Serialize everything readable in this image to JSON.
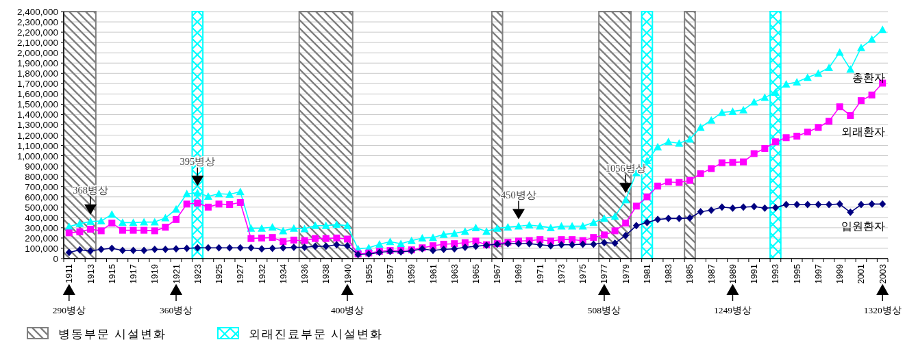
{
  "chart_data": {
    "type": "line",
    "categories": [
      "1911",
      null,
      "1913",
      null,
      "1915",
      null,
      "1917",
      null,
      "1919",
      null,
      "1921",
      null,
      "1923",
      null,
      "1925",
      null,
      "1927",
      null,
      "1932",
      null,
      "1934",
      null,
      "1936",
      null,
      "1938",
      null,
      "1940",
      null,
      "1955",
      null,
      "1957",
      null,
      "1959",
      null,
      "1961",
      null,
      "1963",
      null,
      "1965",
      null,
      "1967",
      null,
      "1969",
      null,
      "1971",
      null,
      "1973",
      null,
      "1975",
      null,
      "1977",
      null,
      "1979",
      null,
      "1981",
      null,
      "1983",
      null,
      "1985",
      null,
      "1987",
      null,
      "1989",
      null,
      "1991",
      null,
      "1993",
      null,
      "1995",
      null,
      "1997",
      null,
      "1999",
      null,
      "2001",
      null,
      "2003"
    ],
    "series": [
      {
        "name": "총환자",
        "color": "#00ffff",
        "marker": "triangle",
        "values": [
          310000,
          340000,
          360000,
          365000,
          430000,
          350000,
          350000,
          355000,
          355000,
          395000,
          480000,
          630000,
          640000,
          605000,
          630000,
          625000,
          650000,
          295000,
          295000,
          305000,
          270000,
          295000,
          290000,
          320000,
          320000,
          330000,
          320000,
          95000,
          105000,
          140000,
          165000,
          145000,
          175000,
          200000,
          205000,
          235000,
          245000,
          265000,
          300000,
          265000,
          295000,
          305000,
          315000,
          325000,
          315000,
          300000,
          315000,
          315000,
          315000,
          350000,
          390000,
          410000,
          570000,
          835000,
          950000,
          1085000,
          1135000,
          1120000,
          1160000,
          1275000,
          1345000,
          1420000,
          1430000,
          1445000,
          1520000,
          1565000,
          1615000,
          1695000,
          1715000,
          1760000,
          1800000,
          1855000,
          2005000,
          1840000,
          2050000,
          2130000,
          2225000
        ]
      },
      {
        "name": "외래환자",
        "color": "#ff00ff",
        "marker": "square",
        "values": [
          250000,
          260000,
          285000,
          270000,
          345000,
          275000,
          275000,
          275000,
          270000,
          305000,
          380000,
          530000,
          540000,
          500000,
          530000,
          525000,
          545000,
          195000,
          200000,
          205000,
          165000,
          180000,
          175000,
          195000,
          195000,
          200000,
          190000,
          45000,
          55000,
          70000,
          80000,
          80000,
          85000,
          105000,
          125000,
          140000,
          145000,
          155000,
          170000,
          135000,
          145000,
          160000,
          170000,
          175000,
          185000,
          170000,
          185000,
          185000,
          175000,
          205000,
          230000,
          270000,
          345000,
          510000,
          600000,
          705000,
          745000,
          740000,
          760000,
          825000,
          875000,
          930000,
          935000,
          940000,
          1020000,
          1070000,
          1135000,
          1175000,
          1190000,
          1230000,
          1275000,
          1335000,
          1475000,
          1390000,
          1535000,
          1590000,
          1705000
        ]
      },
      {
        "name": "입원환자",
        "color": "#000080",
        "marker": "diamond",
        "values": [
          60000,
          85000,
          75000,
          90000,
          100000,
          80000,
          80000,
          80000,
          90000,
          90000,
          95000,
          100000,
          105000,
          105000,
          105000,
          105000,
          105000,
          105000,
          95000,
          100000,
          105000,
          110000,
          110000,
          120000,
          120000,
          135000,
          125000,
          40000,
          45000,
          60000,
          70000,
          65000,
          75000,
          95000,
          80000,
          90000,
          95000,
          110000,
          120000,
          130000,
          140000,
          145000,
          145000,
          145000,
          135000,
          125000,
          135000,
          135000,
          140000,
          140000,
          155000,
          150000,
          225000,
          320000,
          350000,
          380000,
          390000,
          390000,
          395000,
          455000,
          470000,
          500000,
          490000,
          500000,
          505000,
          490000,
          495000,
          525000,
          525000,
          525000,
          525000,
          525000,
          530000,
          450000,
          525000,
          530000,
          530000
        ]
      }
    ],
    "ylim": [
      0,
      2400000
    ],
    "yticks": [
      0,
      {
        "value": 100000,
        "label": "100,000"
      },
      {
        "value": 200000,
        "label": "200,000"
      },
      {
        "value": 300000,
        "label": "300,000"
      },
      {
        "value": 400000,
        "label": "400,000"
      },
      {
        "value": 500000,
        "label": "500,000"
      },
      {
        "value": 600000,
        "label": "600,000"
      },
      {
        "value": 700000,
        "label": "700,000"
      },
      {
        "value": 800000,
        "label": "800,000"
      },
      {
        "value": 900000,
        "label": "900,000"
      },
      {
        "value": 1000000,
        "label": "1,000,000"
      },
      {
        "value": 1100000,
        "label": "1,100,000"
      },
      {
        "value": 1200000,
        "label": "1,200,000"
      },
      {
        "value": 1300000,
        "label": "1,300,000"
      },
      {
        "value": 1400000,
        "label": "1,400,000"
      },
      {
        "value": 1500000,
        "label": "1,500,000"
      },
      {
        "value": 1600000,
        "label": "1,600,000"
      },
      {
        "value": 1700000,
        "label": "1,700,000"
      },
      {
        "value": 1800000,
        "label": "1,800,000"
      },
      {
        "value": 1900000,
        "label": "1,900,000"
      },
      {
        "value": 2000000,
        "label": "2,000,000"
      },
      {
        "value": 2100000,
        "label": "2,100,000"
      },
      {
        "value": 2200000,
        "label": "2,200,000"
      },
      {
        "value": 2300000,
        "label": "2,300,000"
      },
      {
        "value": 2400000,
        "label": "2,400,000"
      }
    ],
    "grid": "y",
    "legend": "bottom",
    "bands": [
      {
        "axis": "x",
        "from": "1911",
        "to": "1913",
        "label": "병동부문 시설변화",
        "color": "#808080"
      },
      {
        "axis": "x",
        "from": "1923",
        "to": "1923",
        "label": "외래진료부문 시설변화",
        "color": "#00ffff"
      },
      {
        "axis": "x",
        "from": "1936",
        "to": "1940",
        "color": "#808080"
      },
      {
        "axis": "x",
        "from": "1967",
        "to": "1967",
        "color": "#808080"
      },
      {
        "axis": "x",
        "from": "1977",
        "to": "1979",
        "color": "#808080"
      },
      {
        "axis": "x",
        "from": "1981",
        "to": "1981",
        "color": "#00ffff"
      },
      {
        "axis": "x",
        "from": "1985",
        "to": "1985",
        "color": "#808080"
      },
      {
        "axis": "x",
        "from": "1993",
        "to": "1993",
        "color": "#00ffff"
      }
    ],
    "annotations": [
      {
        "text": "368병상",
        "x": "1913",
        "y": 360000
      },
      {
        "text": "395병상",
        "x": "1923",
        "y": 640000
      },
      {
        "text": "450병상",
        "x": "1969",
        "y": 315000
      },
      {
        "text": "1056병상",
        "x": "1979",
        "y": 570000
      },
      {
        "text": "290병상",
        "x": "1911"
      },
      {
        "text": "360병상",
        "x": "1921"
      },
      {
        "text": "400병상",
        "x": "1940"
      },
      {
        "text": "508병상",
        "x": "1977"
      },
      {
        "text": "1249병상",
        "x": "1989"
      },
      {
        "text": "1320병상",
        "x": "2003"
      }
    ]
  }
}
